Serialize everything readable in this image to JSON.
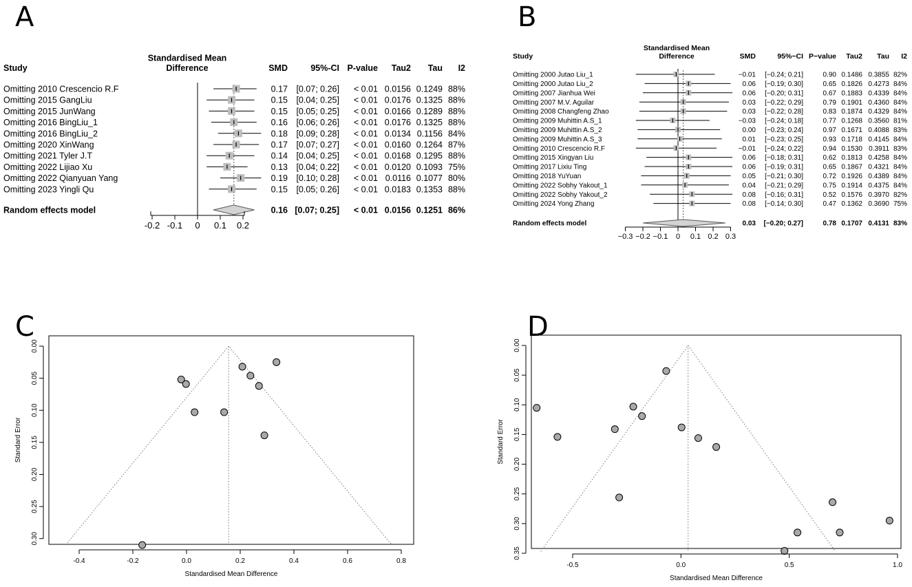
{
  "chart_data": [
    {
      "panel": "A",
      "type": "forest",
      "xlabel_header": [
        "Standardised Mean",
        "Difference"
      ],
      "columns": [
        "Study",
        "SMD",
        "95%-CI",
        "P-value",
        "Tau2",
        "Tau",
        "I2"
      ],
      "xlim": [
        -0.2,
        0.2
      ],
      "ticks": [
        "-0.2",
        "-0.1",
        "0",
        "0.1",
        "0.2"
      ],
      "rows": [
        {
          "study": "Omitting  2010 Crescencio R.F",
          "smd": 0.17,
          "lo": 0.07,
          "hi": 0.26,
          "smd_t": "0.17",
          "ci_t": "[0.07; 0.26]",
          "p": "< 0.01",
          "tau2": "0.0156",
          "tau": "0.1249",
          "i2": "88%"
        },
        {
          "study": "Omitting  2015 GangLiu",
          "smd": 0.15,
          "lo": 0.04,
          "hi": 0.25,
          "smd_t": "0.15",
          "ci_t": "[0.04; 0.25]",
          "p": "< 0.01",
          "tau2": "0.0176",
          "tau": "0.1325",
          "i2": "88%"
        },
        {
          "study": "Omitting  2015 JunWang",
          "smd": 0.15,
          "lo": 0.05,
          "hi": 0.25,
          "smd_t": "0.15",
          "ci_t": "[0.05; 0.25]",
          "p": "< 0.01",
          "tau2": "0.0166",
          "tau": "0.1289",
          "i2": "88%"
        },
        {
          "study": "Omitting  2016 BingLiu_1",
          "smd": 0.16,
          "lo": 0.06,
          "hi": 0.26,
          "smd_t": "0.16",
          "ci_t": "[0.06; 0.26]",
          "p": "< 0.01",
          "tau2": "0.0176",
          "tau": "0.1325",
          "i2": "88%"
        },
        {
          "study": "Omitting  2016 BingLiu_2",
          "smd": 0.18,
          "lo": 0.09,
          "hi": 0.28,
          "smd_t": "0.18",
          "ci_t": "[0.09; 0.28]",
          "p": "< 0.01",
          "tau2": "0.0134",
          "tau": "0.1156",
          "i2": "84%"
        },
        {
          "study": "Omitting 2020 XinWang",
          "smd": 0.17,
          "lo": 0.07,
          "hi": 0.27,
          "smd_t": "0.17",
          "ci_t": "[0.07; 0.27]",
          "p": "< 0.01",
          "tau2": "0.0160",
          "tau": "0.1264",
          "i2": "87%"
        },
        {
          "study": "Omitting 2021 Tyler J.T",
          "smd": 0.14,
          "lo": 0.04,
          "hi": 0.25,
          "smd_t": "0.14",
          "ci_t": "[0.04; 0.25]",
          "p": "< 0.01",
          "tau2": "0.0168",
          "tau": "0.1295",
          "i2": "88%"
        },
        {
          "study": "Omitting 2022 Lijiao Xu",
          "smd": 0.13,
          "lo": 0.04,
          "hi": 0.22,
          "smd_t": "0.13",
          "ci_t": "[0.04; 0.22]",
          "p": "< 0.01",
          "tau2": "0.0120",
          "tau": "0.1093",
          "i2": "75%"
        },
        {
          "study": "Omitting 2022 Qianyuan Yang",
          "smd": 0.19,
          "lo": 0.1,
          "hi": 0.28,
          "smd_t": "0.19",
          "ci_t": "[0.10; 0.28]",
          "p": "< 0.01",
          "tau2": "0.0116",
          "tau": "0.1077",
          "i2": "80%"
        },
        {
          "study": "Omitting 2023 Yingli Qu",
          "smd": 0.15,
          "lo": 0.05,
          "hi": 0.26,
          "smd_t": "0.15",
          "ci_t": "[0.05; 0.26]",
          "p": "< 0.01",
          "tau2": "0.0183",
          "tau": "0.1353",
          "i2": "88%"
        }
      ],
      "summary": {
        "label": "Random effects model",
        "smd": 0.16,
        "lo": 0.07,
        "hi": 0.25,
        "smd_t": "0.16",
        "ci_t": "[0.07; 0.25]",
        "p": "< 0.01",
        "tau2": "0.0156",
        "tau": "0.1251",
        "i2": "86%"
      }
    },
    {
      "panel": "B",
      "type": "forest",
      "xlabel_header": [
        "Standardised Mean",
        "Difference"
      ],
      "columns": [
        "Study",
        "SMD",
        "95%−CI",
        "P−value",
        "Tau2",
        "Tau",
        "I2"
      ],
      "xlim": [
        -0.3,
        0.3
      ],
      "ticks": [
        "−0.3",
        "−0.2",
        "−0.1",
        "0",
        "0.1",
        "0.2",
        "0.3"
      ],
      "rows": [
        {
          "study": "Omitting 2000 Jutao Liu_1",
          "smd": -0.01,
          "lo": -0.24,
          "hi": 0.21,
          "smd_t": "−0.01",
          "ci_t": "[−0.24; 0.21]",
          "p": "0.90",
          "tau2": "0.1486",
          "tau": "0.3855",
          "i2": "82%"
        },
        {
          "study": "Omitting 2000 Jutao Liu_2",
          "smd": 0.06,
          "lo": -0.19,
          "hi": 0.3,
          "smd_t": "0.06",
          "ci_t": "[−0.19; 0.30]",
          "p": "0.65",
          "tau2": "0.1826",
          "tau": "0.4273",
          "i2": "84%"
        },
        {
          "study": "Omitting 2007 Jianhua Wei",
          "smd": 0.06,
          "lo": -0.2,
          "hi": 0.31,
          "smd_t": "0.06",
          "ci_t": "[−0.20; 0.31]",
          "p": "0.67",
          "tau2": "0.1883",
          "tau": "0.4339",
          "i2": "84%"
        },
        {
          "study": "Omitting  2007 M.V. Aguilar",
          "smd": 0.03,
          "lo": -0.22,
          "hi": 0.29,
          "smd_t": "0.03",
          "ci_t": "[−0.22; 0.29]",
          "p": "0.79",
          "tau2": "0.1901",
          "tau": "0.4360",
          "i2": "84%"
        },
        {
          "study": "Omitting 2008 Changfeng Zhao",
          "smd": 0.03,
          "lo": -0.22,
          "hi": 0.28,
          "smd_t": "0.03",
          "ci_t": "[−0.22; 0.28]",
          "p": "0.83",
          "tau2": "0.1874",
          "tau": "0.4329",
          "i2": "84%"
        },
        {
          "study": "Omitting 2009 Muhittin A.S_1",
          "smd": -0.03,
          "lo": -0.24,
          "hi": 0.18,
          "smd_t": "−0.03",
          "ci_t": "[−0.24; 0.18]",
          "p": "0.77",
          "tau2": "0.1268",
          "tau": "0.3560",
          "i2": "81%"
        },
        {
          "study": "Omitting 2009 Muhittin A.S_2",
          "smd": 0.0,
          "lo": -0.23,
          "hi": 0.24,
          "smd_t": "0.00",
          "ci_t": "[−0.23; 0.24]",
          "p": "0.97",
          "tau2": "0.1671",
          "tau": "0.4088",
          "i2": "83%"
        },
        {
          "study": "Omitting 2009 Muhittin A.S_3",
          "smd": 0.01,
          "lo": -0.23,
          "hi": 0.25,
          "smd_t": "0.01",
          "ci_t": "[−0.23; 0.25]",
          "p": "0.93",
          "tau2": "0.1718",
          "tau": "0.4145",
          "i2": "84%"
        },
        {
          "study": "Omitting 2010 Crescencio R.F",
          "smd": -0.01,
          "lo": -0.24,
          "hi": 0.22,
          "smd_t": "−0.01",
          "ci_t": "[−0.24; 0.22]",
          "p": "0.94",
          "tau2": "0.1530",
          "tau": "0.3911",
          "i2": "83%"
        },
        {
          "study": "Omitting 2015 Xingyan Liu",
          "smd": 0.06,
          "lo": -0.18,
          "hi": 0.31,
          "smd_t": "0.06",
          "ci_t": "[−0.18; 0.31]",
          "p": "0.62",
          "tau2": "0.1813",
          "tau": "0.4258",
          "i2": "84%"
        },
        {
          "study": "Omitting 2017 Lixiu Ting",
          "smd": 0.06,
          "lo": -0.19,
          "hi": 0.31,
          "smd_t": "0.06",
          "ci_t": "[−0.19; 0.31]",
          "p": "0.65",
          "tau2": "0.1867",
          "tau": "0.4321",
          "i2": "84%"
        },
        {
          "study": "Omitting 2018 YuYuan",
          "smd": 0.05,
          "lo": -0.21,
          "hi": 0.3,
          "smd_t": "0.05",
          "ci_t": "[−0.21; 0.30]",
          "p": "0.72",
          "tau2": "0.1926",
          "tau": "0.4389",
          "i2": "84%"
        },
        {
          "study": "Omitting 2022 Sobhy Yakout_1",
          "smd": 0.04,
          "lo": -0.21,
          "hi": 0.29,
          "smd_t": "0.04",
          "ci_t": "[−0.21; 0.29]",
          "p": "0.75",
          "tau2": "0.1914",
          "tau": "0.4375",
          "i2": "84%"
        },
        {
          "study": "Omitting 2022 Sobhy Yakout_2",
          "smd": 0.08,
          "lo": -0.16,
          "hi": 0.31,
          "smd_t": "0.08",
          "ci_t": "[−0.16; 0.31]",
          "p": "0.52",
          "tau2": "0.1576",
          "tau": "0.3970",
          "i2": "82%"
        },
        {
          "study": "Omitting 2024 Yong Zhang",
          "smd": 0.08,
          "lo": -0.14,
          "hi": 0.3,
          "smd_t": "0.08",
          "ci_t": "[−0.14; 0.30]",
          "p": "0.47",
          "tau2": "0.1362",
          "tau": "0.3690",
          "i2": "75%"
        }
      ],
      "summary": {
        "label": "Random effects model",
        "smd": 0.03,
        "lo": -0.2,
        "hi": 0.27,
        "smd_t": "0.03",
        "ci_t": "[−0.20; 0.27]",
        "p": "0.78",
        "tau2": "0.1707",
        "tau": "0.4131",
        "i2": "83%"
      }
    },
    {
      "panel": "C",
      "type": "scatter",
      "subtype": "funnel",
      "xlabel": "Standardised Mean Difference",
      "ylabel": "Standard Error",
      "xlim": [
        -0.5,
        0.8
      ],
      "ylim": [
        0.31,
        0.0
      ],
      "xticks": [
        "-0.4",
        "-0.2",
        "0.0",
        "0.2",
        "0.4",
        "0.6",
        "0.8"
      ],
      "yticks": [
        "0.00",
        "0.05",
        "0.10",
        "0.15",
        "0.20",
        "0.25",
        "0.30"
      ],
      "center": 0.157,
      "funnel_base_se": 0.31,
      "points": [
        {
          "x": 0.208,
          "y": 0.032
        },
        {
          "x": 0.335,
          "y": 0.025
        },
        {
          "x": 0.238,
          "y": 0.046
        },
        {
          "x": 0.27,
          "y": 0.062
        },
        {
          "x": -0.02,
          "y": 0.052
        },
        {
          "x": -0.002,
          "y": 0.059
        },
        {
          "x": 0.03,
          "y": 0.103
        },
        {
          "x": 0.14,
          "y": 0.103
        },
        {
          "x": 0.29,
          "y": 0.139
        },
        {
          "x": -0.165,
          "y": 0.31
        }
      ]
    },
    {
      "panel": "D",
      "type": "scatter",
      "subtype": "funnel",
      "xlabel": "Standardised Mean Difference",
      "ylabel": "Standard Error",
      "xlim": [
        -0.7,
        1.0
      ],
      "ylim": [
        0.35,
        0.0
      ],
      "xticks": [
        "-0.5",
        "0.0",
        "0.5",
        "1.0"
      ],
      "yticks": [
        "0.00",
        "0.05",
        "0.10",
        "0.15",
        "0.20",
        "0.25",
        "0.30",
        "0.35"
      ],
      "center": 0.033,
      "funnel_base_se": 0.347,
      "points": [
        {
          "x": -0.068,
          "y": 0.043
        },
        {
          "x": -0.666,
          "y": 0.105
        },
        {
          "x": -0.22,
          "y": 0.103
        },
        {
          "x": -0.18,
          "y": 0.119
        },
        {
          "x": -0.57,
          "y": 0.154
        },
        {
          "x": -0.305,
          "y": 0.141
        },
        {
          "x": 0.003,
          "y": 0.138
        },
        {
          "x": 0.08,
          "y": 0.156
        },
        {
          "x": 0.163,
          "y": 0.171
        },
        {
          "x": -0.285,
          "y": 0.256
        },
        {
          "x": 0.7,
          "y": 0.264
        },
        {
          "x": 0.963,
          "y": 0.295
        },
        {
          "x": 0.538,
          "y": 0.315
        },
        {
          "x": 0.733,
          "y": 0.315
        },
        {
          "x": 0.478,
          "y": 0.346
        }
      ]
    }
  ]
}
